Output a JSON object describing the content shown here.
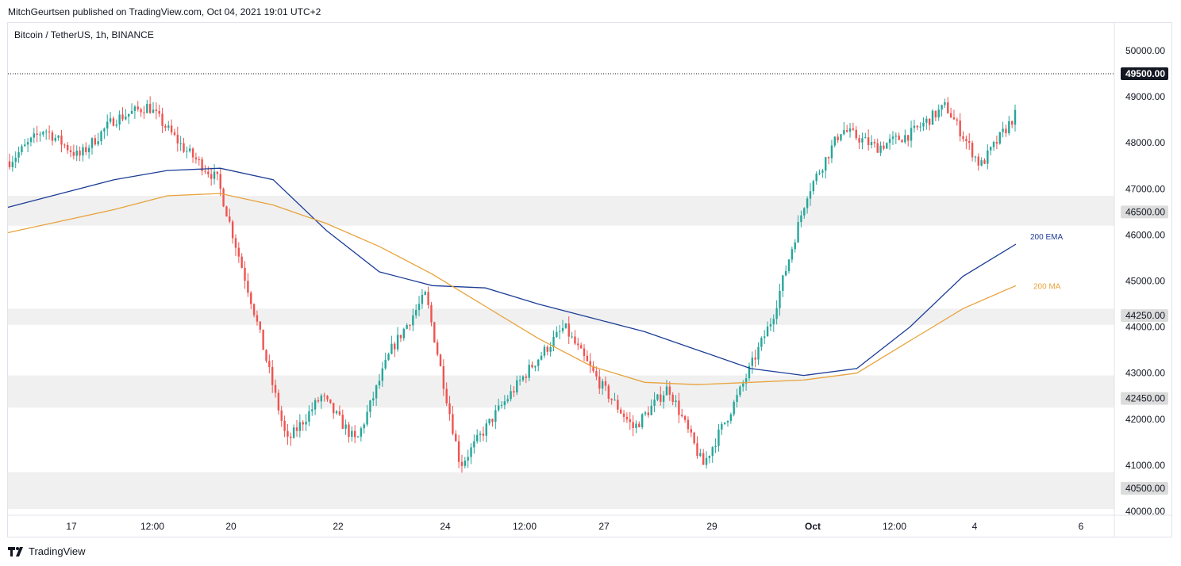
{
  "header": {
    "publisher": "MitchGeurtsen published on TradingView.com, Oct 04, 2021 19:01 UTC+2"
  },
  "symbol_line": "Bitcoin / TetherUS, 1h, BINANCE",
  "footer": {
    "brand": "TradingView"
  },
  "colors": {
    "up": "#26a69a",
    "down": "#ef5350",
    "ema": "#1c3d96",
    "ma": "#e8a33c",
    "zone": "#f0f0f0"
  },
  "chart_data": {
    "type": "candlestick",
    "title": "Bitcoin / TetherUS, 1h, BINANCE",
    "ylim": [
      40000,
      50500
    ],
    "y_ticks": [
      "50000.00",
      "49000.00",
      "48000.00",
      "47000.00",
      "46000.00",
      "45000.00",
      "44000.00",
      "43000.00",
      "42000.00",
      "41000.00",
      "40000.00"
    ],
    "x_tick_labels": [
      "17",
      "12:00",
      "20",
      "22",
      "24",
      "12:00",
      "27",
      "29",
      "Oct",
      "12:00",
      "4",
      "6"
    ],
    "price_labels": [
      "49500.00",
      "46500.00",
      "44250.00",
      "42450.00",
      "40500.00"
    ],
    "resistance_line": 49500,
    "zones": [
      {
        "low": 46200,
        "high": 46850
      },
      {
        "low": 44050,
        "high": 44400
      },
      {
        "low": 42250,
        "high": 42950
      },
      {
        "low": 40050,
        "high": 40850
      }
    ],
    "series": [
      {
        "name": "200 EMA",
        "values": [
          46600,
          46900,
          47200,
          47400,
          47450,
          47200,
          46100,
          45200,
          44900,
          44850,
          44500,
          44200,
          43900,
          43500,
          43100,
          42950,
          43100,
          44000,
          45100,
          45800
        ]
      },
      {
        "name": "200 MA",
        "values": [
          46050,
          46300,
          46550,
          46850,
          46900,
          46650,
          46250,
          45750,
          45150,
          44450,
          43750,
          43150,
          42800,
          42750,
          42800,
          42850,
          43000,
          43700,
          44400,
          44900
        ]
      }
    ],
    "price_path": [
      47600,
      48300,
      47700,
      48500,
      48800,
      47900,
      47200,
      44500,
      41500,
      42500,
      41500,
      43500,
      44700,
      41000,
      42100,
      43100,
      44000,
      42800,
      41800,
      42700,
      41000,
      42500,
      44200,
      46900,
      48300,
      47900,
      48200,
      48800,
      47500,
      48600
    ]
  }
}
